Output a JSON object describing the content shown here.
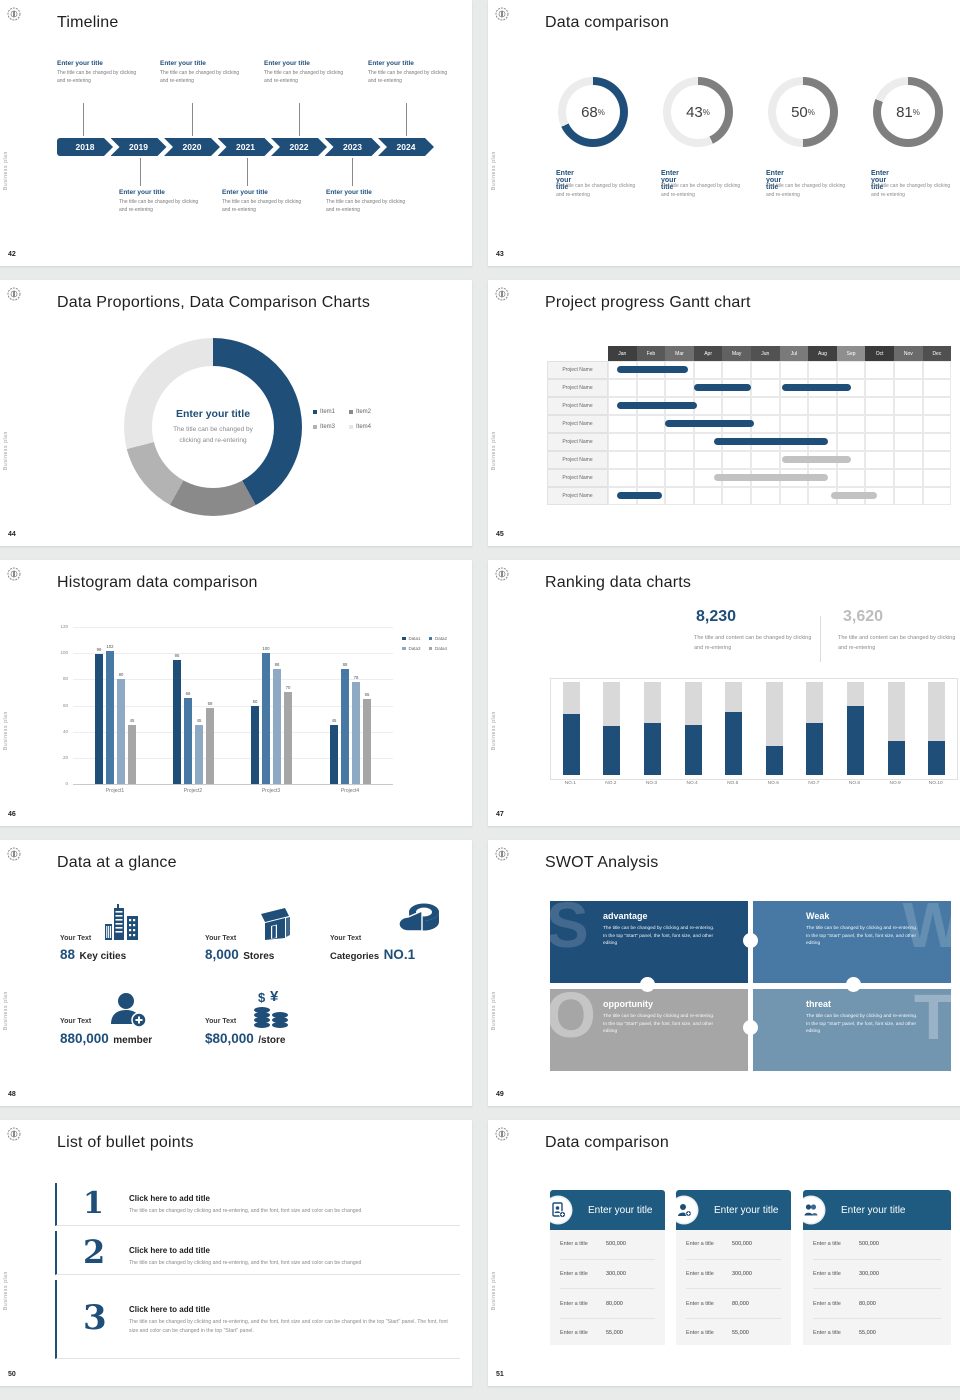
{
  "common": {
    "vertical_text": "Business plan",
    "logo": "seal-logo",
    "accent_color": "#1f4e79"
  },
  "slides": {
    "timeline": {
      "page": "42",
      "title": "Timeline",
      "years": [
        "2018",
        "2019",
        "2020",
        "2021",
        "2022",
        "2023",
        "2024"
      ],
      "top_items": [
        {
          "title": "Enter your title",
          "desc": "The title can be changed by clicking and re-entering"
        },
        {
          "title": "Enter your title",
          "desc": "The title can be changed by clicking and re-entering"
        },
        {
          "title": "Enter your title",
          "desc": "The title can be changed by clicking and re-entering"
        },
        {
          "title": "Enter your title",
          "desc": "The title can be changed by clicking and re-entering"
        }
      ],
      "bottom_items": [
        {
          "title": "Enter your title",
          "desc": "The title can be changed by clicking and re-entering"
        },
        {
          "title": "Enter your title",
          "desc": "The title can be changed by clicking and re-entering"
        },
        {
          "title": "Enter your title",
          "desc": "The title can be changed by clicking and re-entering"
        }
      ]
    },
    "rings": {
      "page": "43",
      "title": "Data comparison",
      "chart_data": {
        "type": "donut-progress",
        "items": [
          {
            "percent": 68,
            "arc_color": "#1f4e79",
            "title": "Enter your title",
            "desc": "The title can be changed by clicking and re-entering"
          },
          {
            "percent": 43,
            "arc_color": "#7f7f7f",
            "title": "Enter your title",
            "desc": "The title can be changed by clicking and re-entering"
          },
          {
            "percent": 50,
            "arc_color": "#7f7f7f",
            "title": "Enter your title",
            "desc": "The title can be changed by clicking and re-entering"
          },
          {
            "percent": 81,
            "arc_color": "#7f7f7f",
            "title": "Enter your title",
            "desc": "The title can be changed by clicking and re-entering"
          }
        ],
        "track_color": "#ececec",
        "percent_suffix": "%"
      }
    },
    "proportions": {
      "page": "44",
      "title": "Data Proportions, Data Comparison Charts",
      "center_title": "Enter your title",
      "center_desc": "The title can be changed by clicking and re-entering",
      "chart_data": {
        "type": "pie",
        "donut": true,
        "segments": [
          {
            "name": "Item1",
            "value": 42,
            "color": "#1f4e79"
          },
          {
            "name": "Item2",
            "value": 16,
            "color": "#8a8a8a"
          },
          {
            "name": "Item3",
            "value": 13,
            "color": "#b3b3b3"
          },
          {
            "name": "Item4",
            "value": 29,
            "color": "#e6e6e6"
          }
        ],
        "legend_position": "right"
      }
    },
    "gantt": {
      "page": "45",
      "title": "Project progress Gantt chart",
      "months": [
        "Jan",
        "Feb",
        "Mar",
        "Apr",
        "May",
        "Jun",
        "Jul",
        "Aug",
        "Sep",
        "Oct",
        "Nov",
        "Dec"
      ],
      "row_label": "Project Name",
      "chart_data": {
        "type": "gantt",
        "bar_colors": {
          "primary": "#1f4e79",
          "secondary": "#c2c2c2"
        },
        "rows": [
          {
            "label": "Project Name",
            "bars": [
              {
                "start": 0.3,
                "end": 2.8,
                "color": "primary"
              }
            ]
          },
          {
            "label": "Project Name",
            "bars": [
              {
                "start": 3.0,
                "end": 5.0,
                "color": "primary"
              },
              {
                "start": 6.1,
                "end": 8.5,
                "color": "primary"
              }
            ]
          },
          {
            "label": "Project Name",
            "bars": [
              {
                "start": 0.3,
                "end": 3.1,
                "color": "primary"
              }
            ]
          },
          {
            "label": "Project Name",
            "bars": [
              {
                "start": 2.0,
                "end": 5.1,
                "color": "primary"
              }
            ]
          },
          {
            "label": "Project Name",
            "bars": [
              {
                "start": 3.7,
                "end": 7.7,
                "color": "primary"
              }
            ]
          },
          {
            "label": "Project Name",
            "bars": [
              {
                "start": 6.1,
                "end": 8.5,
                "color": "secondary"
              }
            ]
          },
          {
            "label": "Project Name",
            "bars": [
              {
                "start": 3.7,
                "end": 7.7,
                "color": "secondary"
              }
            ]
          },
          {
            "label": "Project Name",
            "bars": [
              {
                "start": 0.3,
                "end": 1.9,
                "color": "primary"
              },
              {
                "start": 7.8,
                "end": 9.4,
                "color": "secondary"
              }
            ]
          }
        ]
      }
    },
    "histogram": {
      "page": "46",
      "title": "Histogram data comparison",
      "chart_data": {
        "type": "bar",
        "categories": [
          "Project1",
          "Project2",
          "Project3",
          "Project4"
        ],
        "series": [
          {
            "name": "Data1",
            "color": "#1f4e79",
            "values": [
              99,
              95,
              60,
              45
            ]
          },
          {
            "name": "Data2",
            "color": "#4779a4",
            "values": [
              102,
              66,
              100,
              88
            ]
          },
          {
            "name": "Data3",
            "color": "#8ea9c4",
            "values": [
              80,
              45,
              88,
              78
            ]
          },
          {
            "name": "Data4",
            "color": "#a6a6a6",
            "values": [
              45,
              58,
              70,
              65
            ]
          }
        ],
        "ylim": [
          0,
          120
        ],
        "ytick_step": 20,
        "grid": true,
        "legend_position": "top-right"
      }
    },
    "ranking": {
      "page": "47",
      "title": "Ranking data charts",
      "stat_primary": {
        "value": "8,230",
        "desc": "The title and content can be changed by clicking and re-entering"
      },
      "stat_secondary": {
        "value": "3,620",
        "desc": "The title and content can be changed by clicking and re-entering"
      },
      "chart_data": {
        "type": "bar",
        "categories": [
          "NO.1",
          "NO.2",
          "NO.3",
          "NO.4",
          "NO.5",
          "NO.6",
          "NO.7",
          "NO.8",
          "NO.9",
          "NO.10"
        ],
        "values_percent_of_track": [
          66,
          53,
          56,
          54,
          68,
          31,
          56,
          74,
          37,
          37
        ],
        "bar_color": "#1f4e79",
        "track_color": "#d9d9d9"
      }
    },
    "glance": {
      "page": "48",
      "title": "Data at a glance",
      "items": [
        {
          "label": "Your Text",
          "big": "88",
          "small": "Key cities",
          "icon": "city-icon"
        },
        {
          "label": "Your Text",
          "big": "8,000",
          "small": "Stores",
          "icon": "store-icon"
        },
        {
          "label": "Your Text",
          "small": "Categories",
          "big": "NO.1",
          "icon": "pie-icon"
        },
        {
          "label": "Your Text",
          "big": "880,000",
          "small": "member",
          "icon": "member-icon"
        },
        {
          "label": "Your Text",
          "big": "$80,000",
          "small": "/store",
          "icon": "coins-icon"
        }
      ]
    },
    "swot": {
      "page": "49",
      "title": "SWOT Analysis",
      "quadrants": [
        {
          "letter": "S",
          "title": "advantage",
          "desc": "The title can be changed by clicking and re-entering. In the top \"Start\" panel, the font, font size, and other editing",
          "color": "#1f4e79"
        },
        {
          "letter": "W",
          "title": "Weak",
          "desc": "The title can be changed by clicking and re-entering. In the top \"Start\" panel, the font, font size, and other editing",
          "color": "#4779a4"
        },
        {
          "letter": "O",
          "title": "opportunity",
          "desc": "The title can be changed by clicking and re-entering. In the top \"Start\" panel, the font, font size, and other editing",
          "color": "#a6a6a6"
        },
        {
          "letter": "T",
          "title": "threat",
          "desc": "The title can be changed by clicking and re-entering. In the top \"Start\" panel, the font, font size, and other editing",
          "color": "#7295b0"
        }
      ]
    },
    "bullets": {
      "page": "50",
      "title": "List of bullet points",
      "items": [
        {
          "num": "1",
          "title": "Click here to add title",
          "desc": "The title can be changed by clicking and re-entering, and the font, font size and color can be changed"
        },
        {
          "num": "2",
          "title": "Click here to add title",
          "desc": "The title can be changed by clicking and re-entering, and the font, font size and color can be changed"
        },
        {
          "num": "3",
          "title": "Click here to add title",
          "desc": "The title can be changed by clicking and re-entering, and the font, font size and color can be changed in the top \"Start\" panel. The font, font size and color can be changed in the top \"Start\" panel."
        }
      ]
    },
    "cards": {
      "page": "51",
      "title": "Data comparison",
      "cards": [
        {
          "title": "Enter your title",
          "icon": "id-card-plus-icon",
          "rows": [
            {
              "label": "Enter a title",
              "value": "500,000"
            },
            {
              "label": "Enter a title",
              "value": "300,000"
            },
            {
              "label": "Enter a title",
              "value": "80,000"
            },
            {
              "label": "Enter a title",
              "value": "55,000"
            }
          ]
        },
        {
          "title": "Enter your title",
          "icon": "person-plus-icon",
          "rows": [
            {
              "label": "Enter a title",
              "value": "500,000"
            },
            {
              "label": "Enter a title",
              "value": "300,000"
            },
            {
              "label": "Enter a title",
              "value": "80,000"
            },
            {
              "label": "Enter a title",
              "value": "55,000"
            }
          ]
        },
        {
          "title": "Enter your title",
          "icon": "people-icon",
          "rows": [
            {
              "label": "Enter a title",
              "value": "500,000"
            },
            {
              "label": "Enter a title",
              "value": "300,000"
            },
            {
              "label": "Enter a title",
              "value": "80,000"
            },
            {
              "label": "Enter a title",
              "value": "55,000"
            }
          ]
        }
      ]
    }
  }
}
